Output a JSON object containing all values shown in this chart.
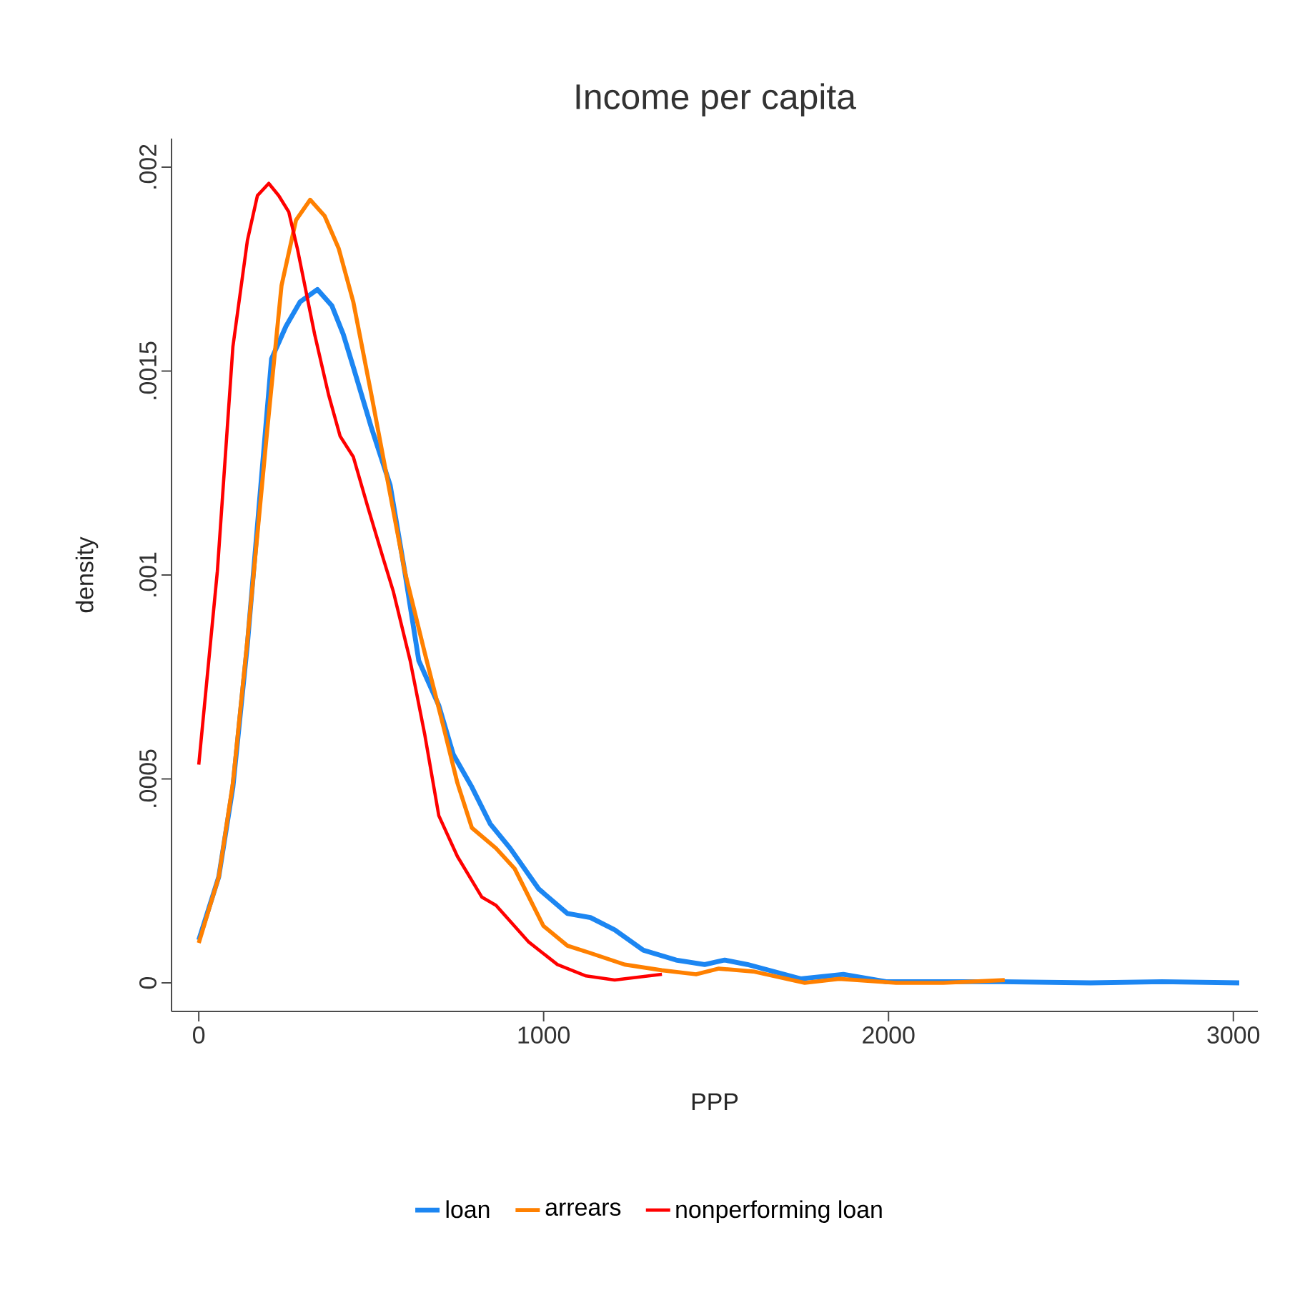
{
  "chart_data": {
    "type": "line",
    "title": "Income per capita",
    "xlabel": "PPP",
    "ylabel": "density",
    "xlim": [
      -79,
      3071
    ],
    "ylim": [
      -7e-05,
      0.00207
    ],
    "xticks": [
      0,
      1000,
      2000,
      3000
    ],
    "yticks": [
      0,
      {
        "value": 0.0005,
        "label": ".0005"
      },
      {
        "value": 0.001,
        "label": ".001"
      },
      {
        "value": 0.0015,
        "label": ".0015"
      },
      {
        "value": 0.002,
        "label": ".002"
      }
    ],
    "legend": "bottom",
    "marker": "none",
    "line_style": "solid",
    "series": [
      {
        "name": "loan",
        "color": "#1c86f2",
        "x": [
          0,
          58,
          99,
          141,
          211,
          253,
          294,
          344,
          386,
          419,
          448,
          501,
          555,
          597,
          638,
          696,
          738,
          792,
          845,
          903,
          986,
          1069,
          1136,
          1206,
          1289,
          1384,
          1467,
          1525,
          1591,
          1745,
          1869,
          1993,
          2325,
          2586,
          2793,
          3017
        ],
        "values": [
          0.000105,
          0.00026,
          0.00048,
          0.00083,
          0.00153,
          0.00161,
          0.00167,
          0.0017,
          0.00166,
          0.00159,
          0.00151,
          0.00136,
          0.00122,
          0.00101,
          0.00079,
          0.00068,
          0.00056,
          0.00048,
          0.00039,
          0.00033,
          0.00023,
          0.00017,
          0.00016,
          0.00013,
          8e-05,
          5.6e-05,
          4.5e-05,
          5.6e-05,
          4.5e-05,
          1e-05,
          2.1e-05,
          3e-06,
          3e-06,
          0,
          3e-06,
          0
        ]
      },
      {
        "name": "arrears",
        "color": "#ff8000",
        "x": [
          0,
          58,
          99,
          141,
          199,
          240,
          282,
          323,
          365,
          406,
          448,
          501,
          597,
          655,
          709,
          750,
          792,
          862,
          916,
          999,
          1069,
          1136,
          1235,
          1343,
          1442,
          1508,
          1608,
          1757,
          1857,
          2022,
          2159,
          2337
        ],
        "values": [
          9.8e-05,
          0.00026,
          0.00049,
          0.00084,
          0.00136,
          0.00171,
          0.00187,
          0.00192,
          0.00188,
          0.0018,
          0.00167,
          0.00144,
          0.00101,
          0.00081,
          0.00063,
          0.00049,
          0.00038,
          0.00033,
          0.00028,
          0.00014,
          9.1e-05,
          7.3e-05,
          4.5e-05,
          3.1e-05,
          2.1e-05,
          3.5e-05,
          2.8e-05,
          0,
          1e-05,
          0,
          0,
          7e-06
        ]
      },
      {
        "name": "nonperforming loan",
        "color": "#ff0000",
        "x": [
          0,
          54,
          99,
          141,
          170,
          203,
          232,
          261,
          286,
          336,
          377,
          410,
          448,
          489,
          535,
          564,
          613,
          655,
          696,
          750,
          821,
          862,
          957,
          1040,
          1123,
          1206,
          1343
        ],
        "values": [
          0.000535,
          0.00101,
          0.00156,
          0.00182,
          0.00193,
          0.00196,
          0.00193,
          0.00189,
          0.0018,
          0.00159,
          0.00144,
          0.00134,
          0.00129,
          0.00117,
          0.00104,
          0.00096,
          0.00079,
          0.00061,
          0.00041,
          0.00031,
          0.00021,
          0.00019,
          0.0001,
          4.5e-05,
          1.7e-05,
          7e-06,
          2.1e-05
        ]
      }
    ]
  }
}
